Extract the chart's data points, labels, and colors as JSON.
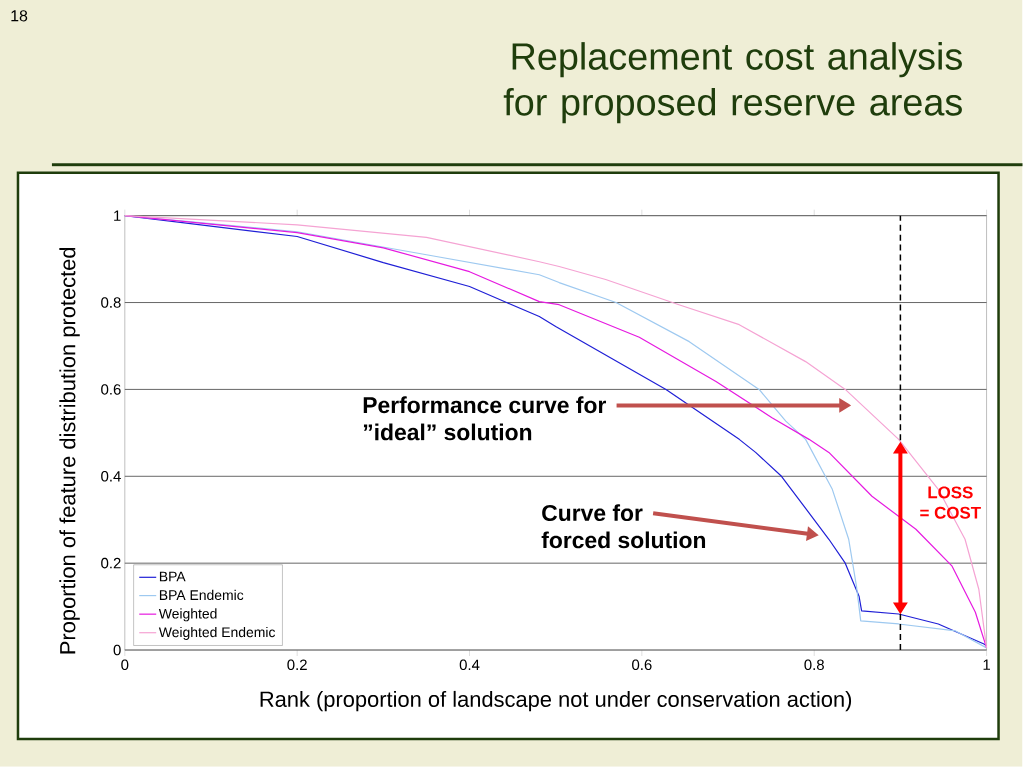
{
  "chart_data": {
    "type": "line",
    "title": "Replacement cost analysis for proposed reserve areas",
    "xlabel": "Rank (proportion of landscape not under conservation action)",
    "ylabel": "Proportion of feature distribution protected",
    "xlim": [
      0,
      1
    ],
    "ylim": [
      0,
      1
    ],
    "xticks": [
      0,
      0.2,
      0.4,
      0.6,
      0.8,
      1
    ],
    "yticks": [
      0,
      0.2,
      0.4,
      0.6,
      0.8,
      1
    ],
    "grid": "y",
    "legend": "bottom left",
    "marker": "none",
    "line_style": "solid",
    "series": [
      {
        "name": "BPA",
        "color": "#1f1fd6",
        "x": [
          0,
          0.2,
          0.3,
          0.4,
          0.443,
          0.481,
          0.5,
          0.628,
          0.713,
          0.732,
          0.762,
          0.817,
          0.836,
          0.852,
          0.855,
          0.898,
          0.944,
          0.997,
          1
        ],
        "values": [
          1,
          0.952,
          0.892,
          0.837,
          0.8,
          0.768,
          0.745,
          0.6,
          0.485,
          0.455,
          0.4,
          0.255,
          0.2,
          0.124,
          0.09,
          0.083,
          0.06,
          0.014,
          0.01
        ]
      },
      {
        "name": "BPA Endemic",
        "color": "#9ec9f0",
        "x": [
          0,
          0.2,
          0.35,
          0.481,
          0.504,
          0.57,
          0.655,
          0.736,
          0.767,
          0.79,
          0.821,
          0.84,
          0.849,
          0.854,
          0.898,
          0.964,
          1
        ],
        "values": [
          1,
          0.963,
          0.91,
          0.864,
          0.846,
          0.8,
          0.71,
          0.6,
          0.527,
          0.485,
          0.37,
          0.255,
          0.147,
          0.067,
          0.06,
          0.044,
          0.005
        ]
      },
      {
        "name": "Weighted",
        "color": "#e619e0",
        "x": [
          0,
          0.2,
          0.3,
          0.4,
          0.481,
          0.504,
          0.597,
          0.686,
          0.751,
          0.794,
          0.817,
          0.867,
          0.918,
          0.96,
          0.987,
          1
        ],
        "values": [
          1,
          0.961,
          0.926,
          0.871,
          0.802,
          0.795,
          0.72,
          0.618,
          0.535,
          0.485,
          0.455,
          0.354,
          0.278,
          0.193,
          0.087,
          0.005
        ]
      },
      {
        "name": "Weighted Endemic",
        "color": "#f5a3d3",
        "x": [
          0,
          0.2,
          0.35,
          0.481,
          0.504,
          0.558,
          0.643,
          0.713,
          0.79,
          0.836,
          0.898,
          0.944,
          0.975,
          0.991,
          1
        ],
        "values": [
          1,
          0.979,
          0.95,
          0.894,
          0.883,
          0.853,
          0.795,
          0.749,
          0.664,
          0.6,
          0.485,
          0.37,
          0.255,
          0.14,
          0.005
        ]
      }
    ],
    "ref_lines": [
      {
        "axis": "x",
        "value": 0.9,
        "color": "#000000",
        "line_style": "dashed"
      }
    ],
    "annotations": [
      "Performance curve for",
      "”ideal” solution",
      "Curve for",
      "forced solution",
      "LOSS",
      "= COST",
      "18"
    ]
  }
}
